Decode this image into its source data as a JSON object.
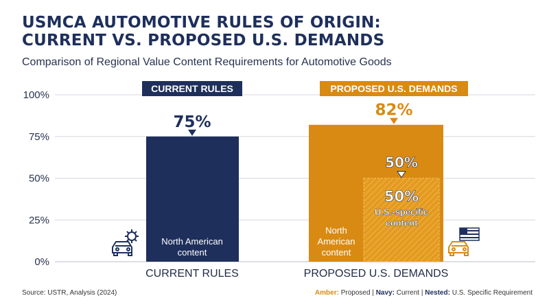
{
  "header": {
    "title_line1": "USMCA AUTOMOTIVE RULES OF ORIGIN:",
    "title_line2": "CURRENT VS. PROPOSED U.S. DEMANDS",
    "subtitle": "Comparison of Regional Value Content Requirements for Automotive Goods"
  },
  "footer": {
    "source": "Source: USTR, Analysis (2024)",
    "legend_amber_key": "Amber:",
    "legend_amber_val": "Proposed",
    "legend_navy_key": "Navy:",
    "legend_navy_val": "Current",
    "legend_nested_key": "Nested:",
    "legend_nested_val": "U.S. Specific Requirement",
    "sep": "|"
  },
  "icons": {
    "current": "car-gear-icon",
    "proposed": "car-us-flag-icon"
  },
  "colors": {
    "navy": "#1e2f5c",
    "amber": "#d98a12",
    "amber_light": "#e8a637",
    "grid": "#d4d7de"
  },
  "chart_data": {
    "type": "bar",
    "ylim": [
      0,
      100
    ],
    "yticks": [
      "0%",
      "25%",
      "50%",
      "75%",
      "100%"
    ],
    "ytick_values": [
      0,
      25,
      50,
      75,
      100
    ],
    "grid": true,
    "categories": [
      "CURRENT RULES",
      "PROPOSED U.S. DEMANDS"
    ],
    "headers": [
      "CURRENT RULES",
      "PROPOSED U.S. DEMANDS"
    ],
    "series": [
      {
        "category": "CURRENT RULES",
        "value": 75,
        "label": "75%",
        "inner_label": [
          "North American",
          "content"
        ],
        "color": "#1e2f5c"
      },
      {
        "category": "PROPOSED U.S. DEMANDS",
        "value": 82,
        "label": "82%",
        "inner_label": [
          "North",
          "American",
          "content"
        ],
        "color": "#d98a12",
        "nested": {
          "value": 50,
          "label": "50%",
          "inner_value": "50%",
          "inner_label": [
            "U.S.-specific",
            "content"
          ]
        }
      }
    ]
  }
}
